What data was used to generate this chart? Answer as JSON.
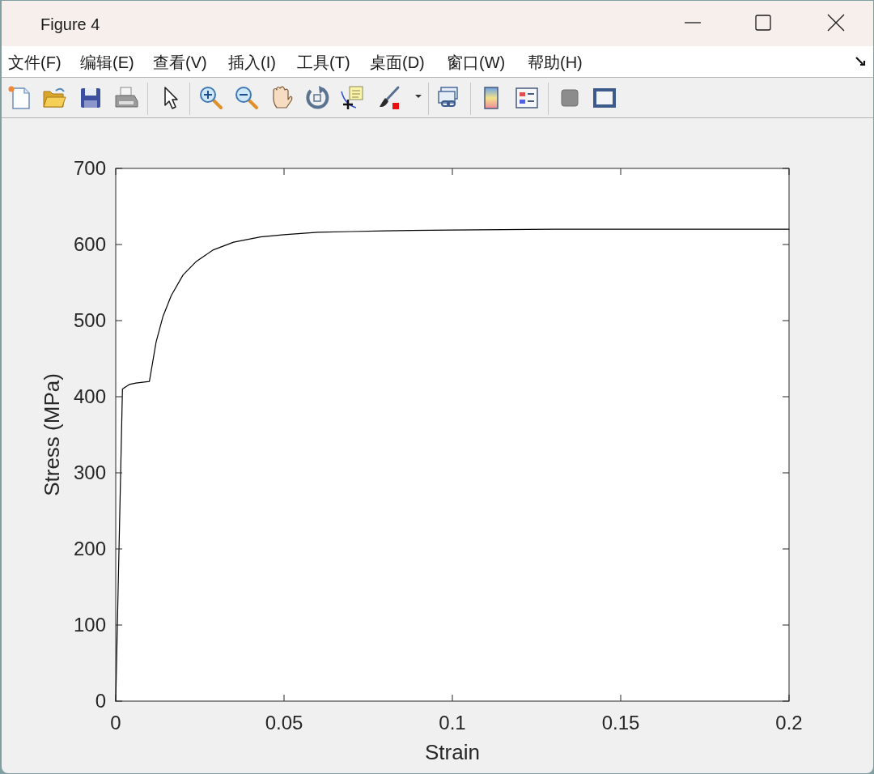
{
  "chart_data": {
    "type": "line",
    "xlabel": "Strain",
    "ylabel": "Stress (MPa)",
    "annotations": [
      "Figure 4",
      "文件(F)",
      "编辑(E)",
      "查看(V)",
      "插入(I)",
      "工具(T)",
      "桌面(D)",
      "窗口(W)",
      "帮助(H)"
    ],
    "x": [
      0,
      0.002,
      0.003,
      0.004,
      0.006,
      0.008,
      0.01,
      0.012,
      0.014,
      0.0165,
      0.02,
      0.024,
      0.029,
      0.035,
      0.043,
      0.05,
      0.06,
      0.07,
      0.08,
      0.1,
      0.13,
      0.16,
      0.2
    ],
    "series": [
      {
        "color": "#000000",
        "values": [
          0,
          410,
          413,
          416,
          418,
          419,
          420,
          472,
          505,
          533,
          560,
          578,
          593,
          603,
          610,
          613,
          616,
          617,
          618,
          619,
          620,
          620,
          620
        ]
      }
    ],
    "xlim": [
      0,
      0.2
    ],
    "ylim": [
      0,
      700
    ],
    "xticks": [
      0,
      0.05,
      0.1,
      0.15,
      0.2
    ],
    "yticks": [
      0,
      100,
      200,
      300,
      400,
      500,
      600,
      700
    ]
  }
}
